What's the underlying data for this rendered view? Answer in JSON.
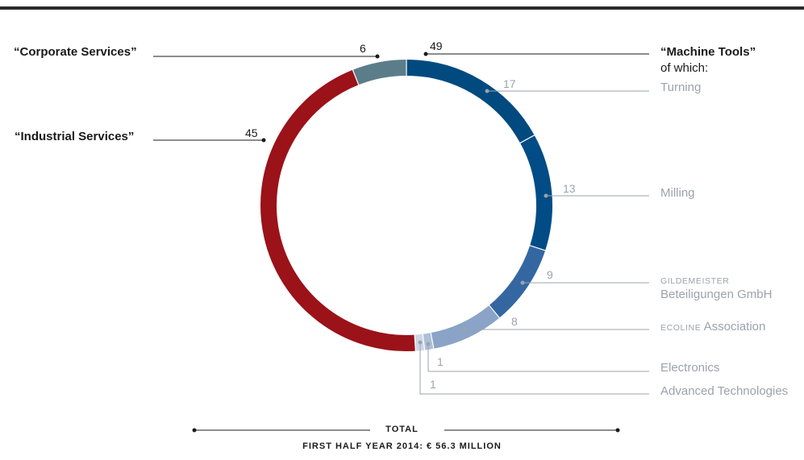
{
  "chart_data": {
    "type": "donut",
    "segments": [
      {
        "key": "mt_turning",
        "value": 17,
        "color": "#004a80",
        "label": "Turning"
      },
      {
        "key": "mt_milling",
        "value": 13,
        "color": "#014c86",
        "label": "Milling"
      },
      {
        "key": "mt_gildemeister",
        "value": 9,
        "color": "#3467a2",
        "label_prefix": "gildemeister",
        "label": "Beteiligungen GmbH"
      },
      {
        "key": "mt_ecoline",
        "value": 8,
        "color": "#8aa3c7",
        "label_prefix": "ecoline",
        "label": "Association"
      },
      {
        "key": "mt_electronics",
        "value": 1,
        "color": "#aebfd9",
        "label": "Electronics"
      },
      {
        "key": "mt_advanced",
        "value": 1,
        "color": "#cdd7e6",
        "label": "Advanced Technologies"
      },
      {
        "key": "industrial_services",
        "value": 45,
        "color": "#9b1219",
        "label": "“Industrial Services”"
      },
      {
        "key": "corporate_services",
        "value": 6,
        "color": "#5b7d8a",
        "label": "“Corporate Services”"
      }
    ],
    "groups": [
      {
        "label": "“Machine Tools”",
        "sublabel": "of which:",
        "value": 49
      },
      {
        "label": "“Industrial Services”",
        "value": 45
      },
      {
        "label": "“Corporate Services”",
        "value": 6
      }
    ]
  },
  "footer": {
    "total_label": "TOTAL",
    "subtitle": "FIRST HALF YEAR 2014: € 56.3 MILLION"
  },
  "colors": {
    "leader_dark": "#1a1a1a",
    "leader_gray": "#9aa3ad",
    "top_rule": "#2b2b2b"
  }
}
